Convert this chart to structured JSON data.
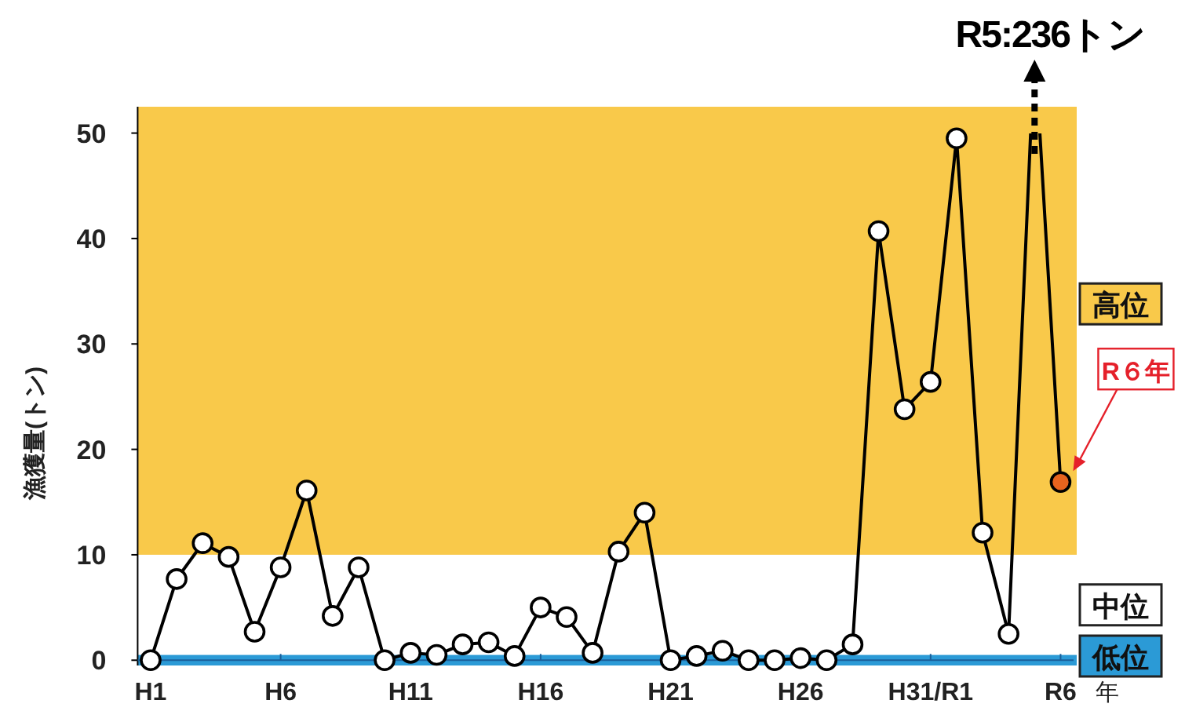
{
  "chart_data": {
    "type": "line",
    "ylabel": "漁獲量(トン)",
    "xlabel": "年",
    "categories": [
      "H1",
      null,
      null,
      null,
      null,
      "H6",
      null,
      null,
      null,
      null,
      "H11",
      null,
      null,
      null,
      null,
      "H16",
      null,
      null,
      null,
      null,
      "H21",
      null,
      null,
      null,
      null,
      "H26",
      null,
      null,
      null,
      null,
      "H31/R1",
      null,
      null,
      null,
      null,
      "R6"
    ],
    "series": [
      {
        "color": "#000000",
        "values": [
          0,
          7.7,
          11.1,
          9.8,
          2.7,
          8.8,
          16.1,
          4.2,
          8.8,
          0,
          0.7,
          0.5,
          1.5,
          1.7,
          0.4,
          5.0,
          4.1,
          0.7,
          10.3,
          14.0,
          0,
          0.4,
          0.9,
          0,
          0,
          0.2,
          0,
          1.5,
          40.7,
          23.8,
          26.4,
          49.5,
          12.1,
          2.5,
          null,
          16.9
        ],
        "colors": [
          "#ffffff",
          "#ffffff",
          "#ffffff",
          "#ffffff",
          "#ffffff",
          "#ffffff",
          "#ffffff",
          "#ffffff",
          "#ffffff",
          "#ffffff",
          "#ffffff",
          "#ffffff",
          "#ffffff",
          "#ffffff",
          "#ffffff",
          "#ffffff",
          "#ffffff",
          "#ffffff",
          "#ffffff",
          "#ffffff",
          "#ffffff",
          "#ffffff",
          "#ffffff",
          "#ffffff",
          "#ffffff",
          "#ffffff",
          "#ffffff",
          "#ffffff",
          "#ffffff",
          "#ffffff",
          "#ffffff",
          "#ffffff",
          "#ffffff",
          "#ffffff",
          null,
          "#e8641e"
        ]
      }
    ],
    "ylim": [
      -0.5,
      52.5
    ],
    "yticks": [
      0,
      10,
      20,
      30,
      40,
      50
    ],
    "marker": "circle",
    "line_style": "solid",
    "bands": [
      {
        "axis": "y",
        "from": 10,
        "to": 52.5,
        "label": "高位",
        "color": "#f9c94a"
      },
      {
        "axis": "y",
        "from": 0.5,
        "to": 10,
        "label": "中位",
        "color": "#ffffff"
      },
      {
        "axis": "y",
        "from": -0.5,
        "to": 0.5,
        "label": "低位",
        "color": "#2b9ad6"
      }
    ],
    "annotations": [
      "R5:236トン",
      "R６年"
    ]
  }
}
